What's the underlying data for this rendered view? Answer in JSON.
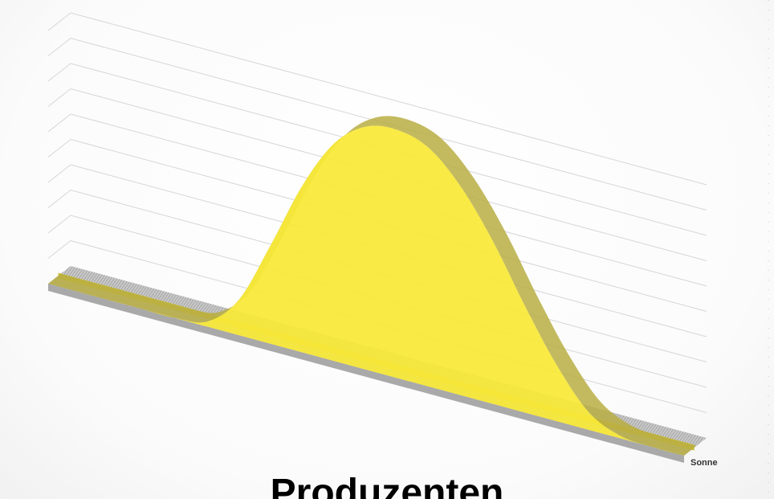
{
  "title": "Produzenten",
  "colors": {
    "fill": "#FFEF3A",
    "fill_shade": "#E0D136",
    "edge": "#B8AE44",
    "band": "#C8BC2E",
    "floor": "#B5B5B5",
    "floor_hatch": "#8E8E8E",
    "grid": "#D6D6D6"
  },
  "chart_data": {
    "type": "area",
    "chart_style": "3d",
    "grid": true,
    "gridline_count": 10,
    "ylim": [
      0,
      10
    ],
    "x": [
      0,
      5,
      10,
      15,
      20,
      25,
      30,
      35,
      40,
      45,
      50,
      55,
      60,
      65,
      70,
      75,
      80,
      85,
      90,
      95,
      100
    ],
    "series": [
      {
        "name": "Sonne",
        "values": [
          0,
          0,
          0,
          0,
          0,
          0.2,
          1.4,
          3.9,
          6.6,
          8.6,
          9.6,
          9.8,
          9.4,
          8.2,
          6.4,
          4.2,
          2.2,
          0.7,
          0.1,
          0,
          0
        ]
      }
    ]
  }
}
